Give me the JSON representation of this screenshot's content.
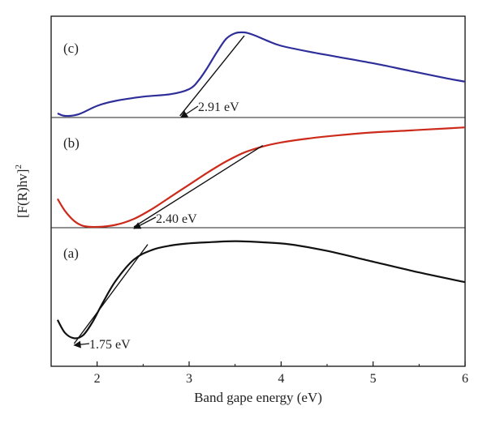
{
  "chart_data": [
    {
      "panel": "c",
      "type": "line",
      "label": "(c)",
      "series": [
        {
          "color": "#2e2e9a",
          "x": [
            1.57,
            1.65,
            1.8,
            2.0,
            2.2,
            2.5,
            2.8,
            3.0,
            3.1,
            3.2,
            3.3,
            3.4,
            3.5,
            3.6,
            3.7,
            3.85,
            4.0,
            4.3,
            4.6,
            5.0,
            5.4,
            5.8,
            6.0
          ],
          "y": [
            0.03,
            0.0,
            0.02,
            0.12,
            0.18,
            0.23,
            0.26,
            0.32,
            0.42,
            0.58,
            0.76,
            0.92,
            0.99,
            1.0,
            0.97,
            0.9,
            0.84,
            0.77,
            0.71,
            0.63,
            0.54,
            0.45,
            0.41
          ]
        }
      ],
      "tangent": {
        "x": [
          2.9,
          3.6
        ],
        "y": [
          0.0,
          0.96
        ],
        "color": "#111111"
      },
      "annotation": {
        "text": "2.91 eV",
        "x": 2.91
      }
    },
    {
      "panel": "b",
      "type": "line",
      "label": "(b)",
      "series": [
        {
          "color": "#cc2a1a",
          "x": [
            1.57,
            1.65,
            1.75,
            1.85,
            2.0,
            2.2,
            2.4,
            2.6,
            2.8,
            3.0,
            3.2,
            3.4,
            3.6,
            3.8,
            4.0,
            4.3,
            4.6,
            5.0,
            5.4,
            5.8,
            6.0
          ],
          "y": [
            0.28,
            0.16,
            0.06,
            0.01,
            0.0,
            0.02,
            0.08,
            0.18,
            0.3,
            0.42,
            0.54,
            0.65,
            0.74,
            0.8,
            0.84,
            0.88,
            0.91,
            0.94,
            0.96,
            0.98,
            0.99
          ]
        }
      ],
      "tangent": {
        "x": [
          2.4,
          3.8
        ],
        "y": [
          0.0,
          0.81
        ],
        "color": "#111111"
      },
      "annotation": {
        "text": "2.40 eV",
        "x": 2.4
      }
    },
    {
      "panel": "a",
      "type": "line",
      "label": "(a)",
      "series": [
        {
          "color": "#111111",
          "x": [
            1.57,
            1.65,
            1.75,
            1.85,
            1.95,
            2.05,
            2.2,
            2.4,
            2.6,
            2.8,
            3.0,
            3.2,
            3.5,
            3.8,
            4.1,
            4.5,
            5.0,
            5.5,
            6.0
          ],
          "y": [
            0.22,
            0.1,
            0.05,
            0.08,
            0.2,
            0.36,
            0.58,
            0.78,
            0.87,
            0.91,
            0.93,
            0.94,
            0.95,
            0.94,
            0.92,
            0.86,
            0.76,
            0.66,
            0.57
          ]
        }
      ],
      "tangent": {
        "x": [
          1.75,
          2.55
        ],
        "y": [
          0.0,
          0.92
        ],
        "color": "#111111"
      },
      "annotation": {
        "text": "1.75 eV",
        "x": 1.75
      }
    }
  ],
  "axes": {
    "xlabel": "Band gape energy (eV)",
    "ylabel": "[F(R)hv]",
    "ylabel_sup": "2",
    "xlim": [
      1.5,
      6.0
    ],
    "xticks": [
      "2",
      "3",
      "4",
      "5",
      "6"
    ]
  }
}
